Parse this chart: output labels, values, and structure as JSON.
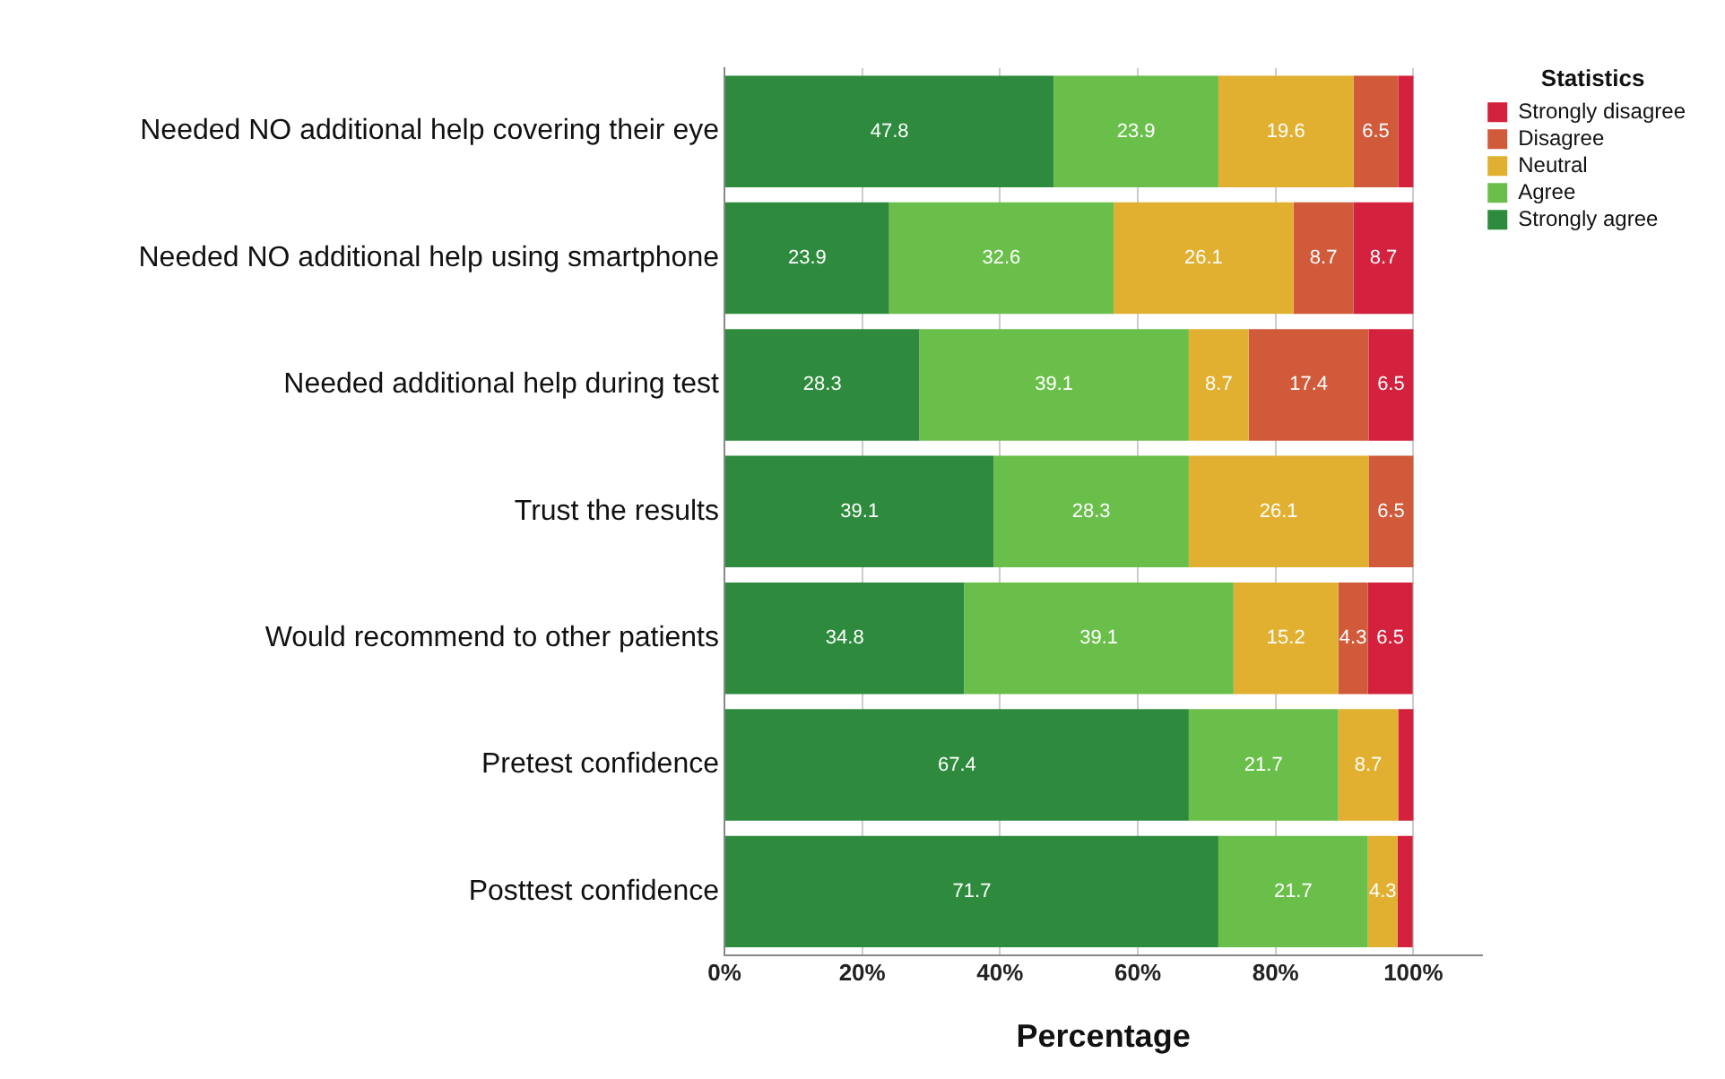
{
  "chart_data": {
    "type": "bar",
    "orientation": "horizontal",
    "stacked": true,
    "categories": [
      "Needed NO additional help covering their eye",
      "Needed NO additional help using smartphone",
      "Needed additional help during test",
      "Trust the results",
      "Would recommend to other patients",
      "Pretest confidence",
      "Posttest confidence"
    ],
    "series": [
      {
        "name": "Strongly agree",
        "color": "#2e8b3e",
        "values": [
          47.8,
          23.9,
          28.3,
          39.1,
          34.8,
          67.4,
          71.7
        ],
        "value_labels": [
          "47.8",
          "23.9",
          "28.3",
          "39.1",
          "34.8",
          "67.4",
          "71.7"
        ]
      },
      {
        "name": "Agree",
        "color": "#6abf4b",
        "values": [
          23.9,
          32.6,
          39.1,
          28.3,
          39.1,
          21.7,
          21.7
        ],
        "value_labels": [
          "23.9",
          "32.6",
          "39.1",
          "28.3",
          "39.1",
          "21.7",
          "21.7"
        ]
      },
      {
        "name": "Neutral",
        "color": "#e2b030",
        "values": [
          19.6,
          26.1,
          8.7,
          26.1,
          15.2,
          8.7,
          4.3
        ],
        "value_labels": [
          "19.6",
          "26.1",
          "8.7",
          "26.1",
          "15.2",
          "8.7",
          "4.3"
        ]
      },
      {
        "name": "Disagree",
        "color": "#d05a3a",
        "values": [
          6.5,
          8.7,
          17.4,
          6.5,
          4.3,
          null,
          null
        ],
        "value_labels": [
          "6.5",
          "8.7",
          "17.4",
          "6.5",
          "4.3",
          null,
          null
        ]
      },
      {
        "name": "Strongly disagree",
        "color": "#d4213d",
        "values": [
          2.2,
          8.7,
          6.5,
          0,
          6.5,
          2.2,
          2.2
        ],
        "value_labels": [
          null,
          "8.7",
          "6.5",
          null,
          "6.5",
          null,
          null
        ]
      }
    ],
    "xlim": [
      0,
      110
    ],
    "xticks": [
      {
        "value": 0,
        "label": "0%"
      },
      {
        "value": 20,
        "label": "20%"
      },
      {
        "value": 40,
        "label": "40%"
      },
      {
        "value": 60,
        "label": "60%"
      },
      {
        "value": 80,
        "label": "80%"
      },
      {
        "value": 100,
        "label": "100%"
      }
    ],
    "xlabel": "Percentage",
    "legend_title": "Statistics",
    "legend": "top right",
    "grid": "x"
  }
}
